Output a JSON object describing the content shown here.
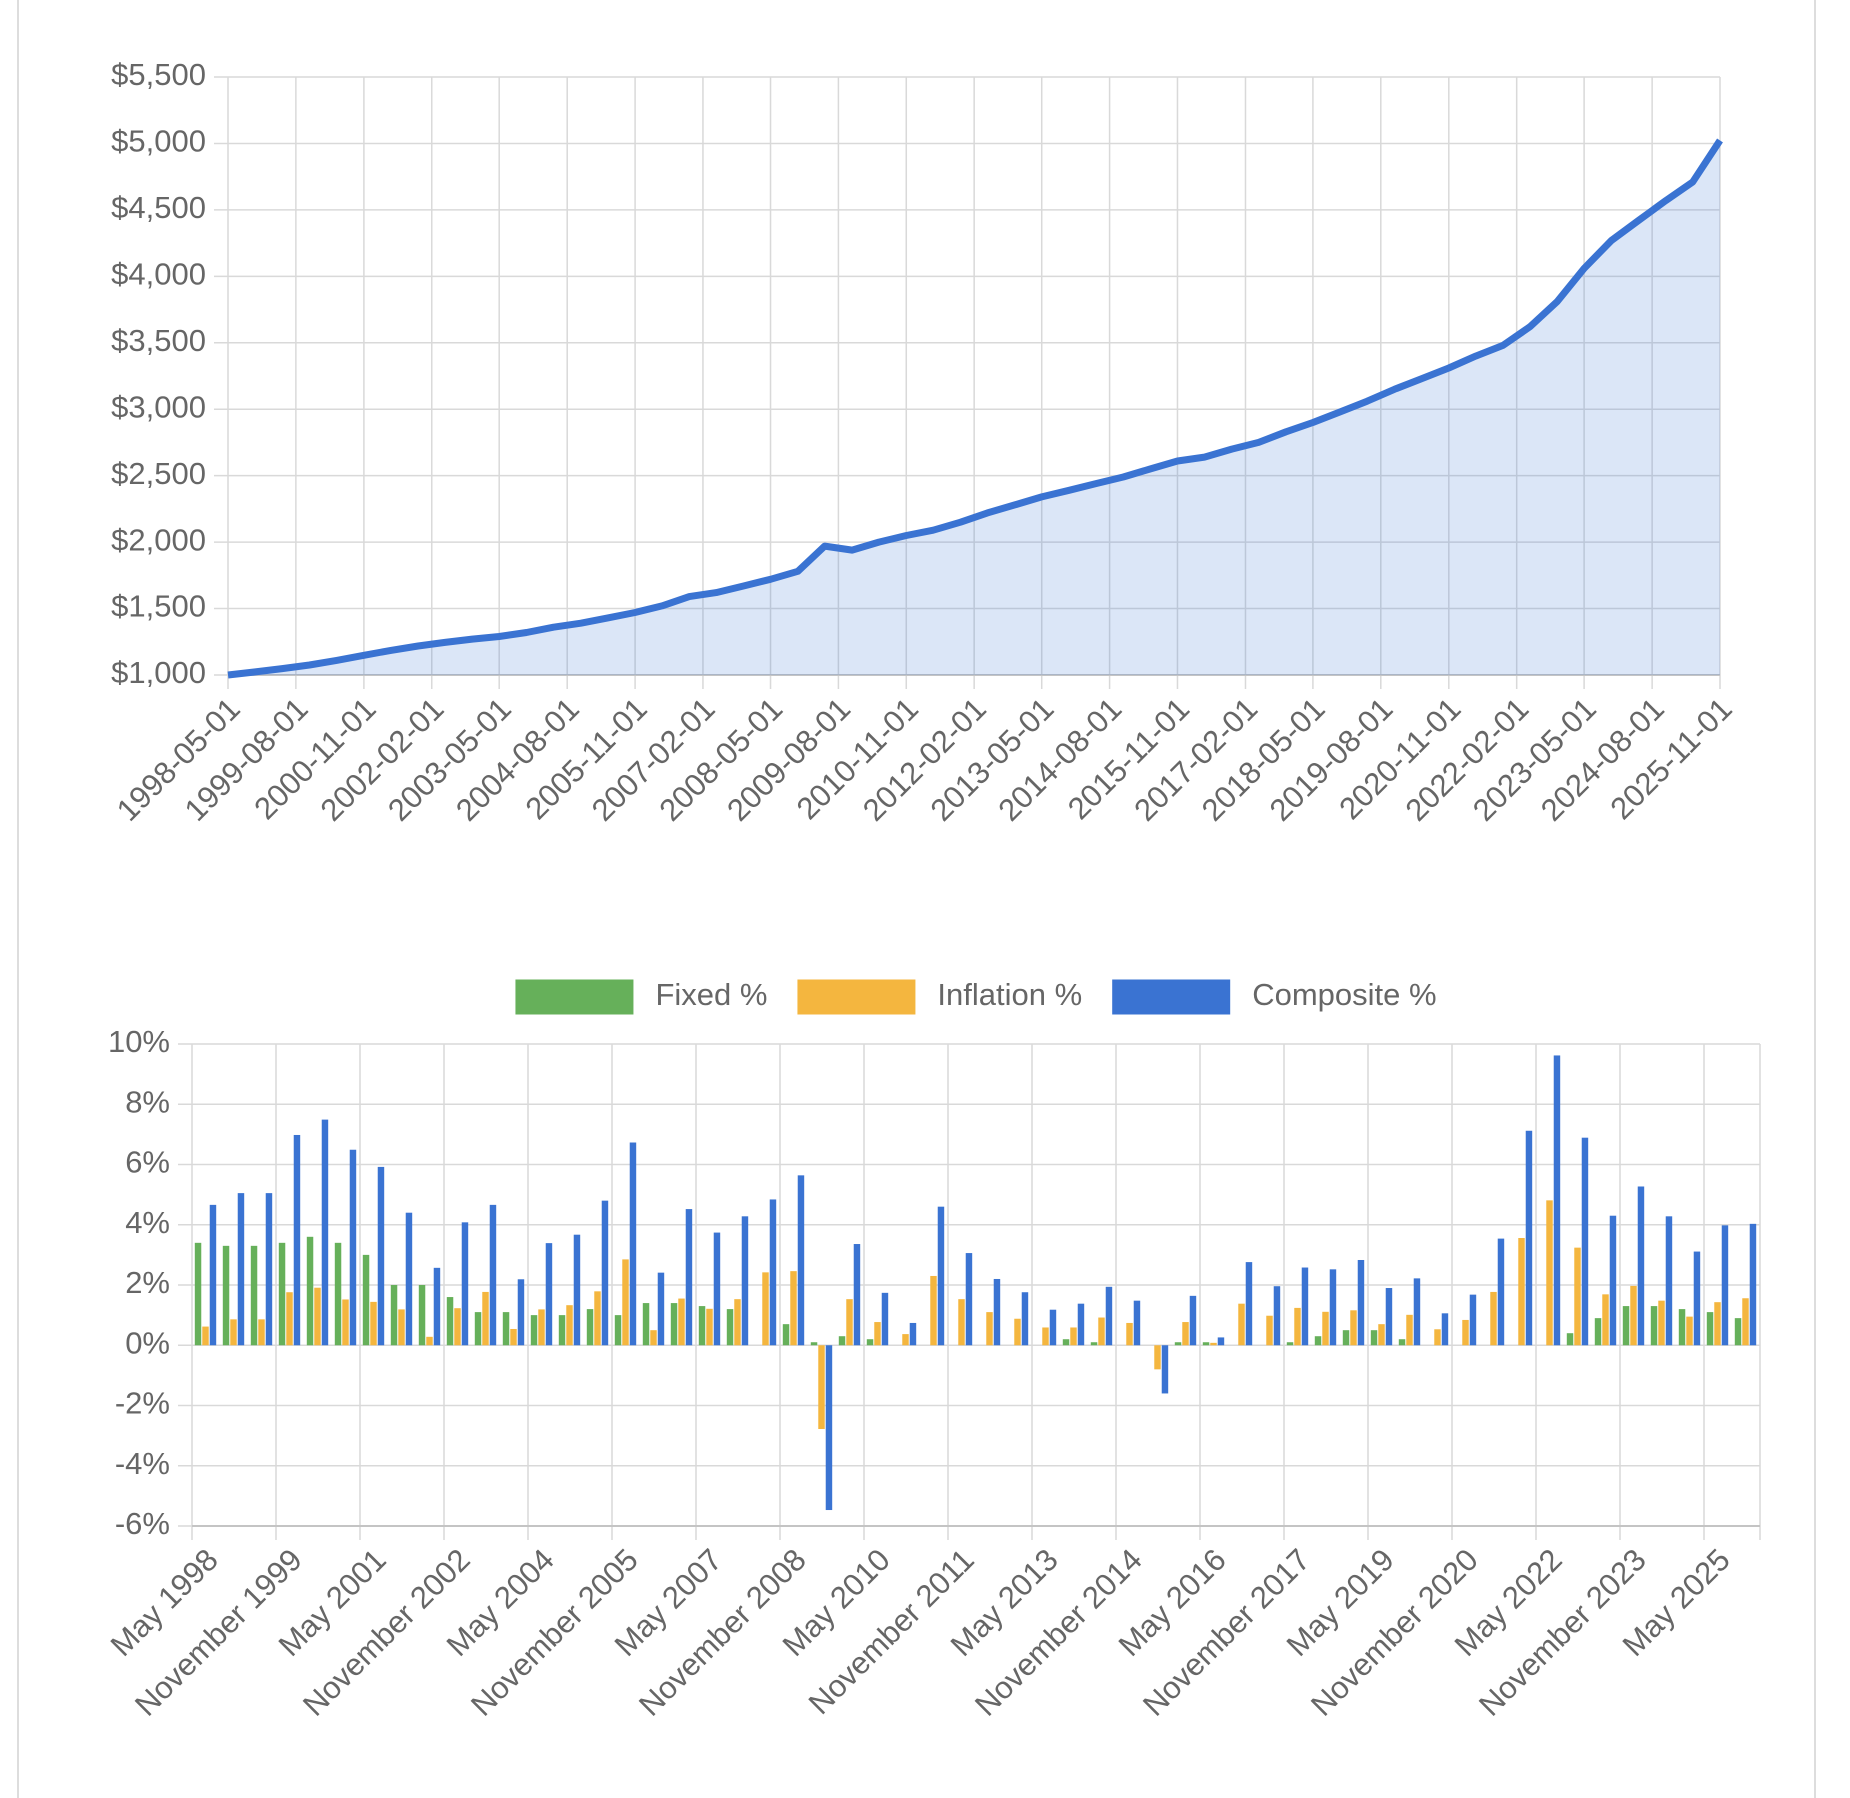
{
  "chart_data": [
    {
      "type": "line",
      "x": [
        "1998-05-01",
        "1998-11-01",
        "1999-05-01",
        "1999-11-01",
        "2000-05-01",
        "2000-11-01",
        "2001-05-01",
        "2001-11-01",
        "2002-05-01",
        "2002-11-01",
        "2003-05-01",
        "2003-11-01",
        "2004-05-01",
        "2004-11-01",
        "2005-05-01",
        "2005-11-01",
        "2006-05-01",
        "2006-11-01",
        "2007-05-01",
        "2007-11-01",
        "2008-05-01",
        "2008-11-01",
        "2009-05-01",
        "2009-11-01",
        "2010-05-01",
        "2010-11-01",
        "2011-05-01",
        "2011-11-01",
        "2012-05-01",
        "2012-11-01",
        "2013-05-01",
        "2013-11-01",
        "2014-05-01",
        "2014-11-01",
        "2015-05-01",
        "2015-11-01",
        "2016-05-01",
        "2016-11-01",
        "2017-05-01",
        "2017-11-01",
        "2018-05-01",
        "2018-11-01",
        "2019-05-01",
        "2019-11-01",
        "2020-05-01",
        "2020-11-01",
        "2021-05-01",
        "2021-11-01",
        "2022-05-01",
        "2022-11-01",
        "2023-05-01",
        "2023-11-01",
        "2024-05-01",
        "2024-11-01",
        "2025-05-01",
        "2025-11-01"
      ],
      "values": [
        1000,
        1023,
        1048,
        1075,
        1110,
        1148,
        1185,
        1218,
        1245,
        1270,
        1290,
        1320,
        1360,
        1390,
        1430,
        1470,
        1520,
        1590,
        1620,
        1670,
        1720,
        1780,
        1970,
        1940,
        2000,
        2050,
        2090,
        2150,
        2220,
        2280,
        2340,
        2390,
        2440,
        2490,
        2550,
        2610,
        2640,
        2700,
        2750,
        2830,
        2900,
        2980,
        3060,
        3150,
        3230,
        3310,
        3400,
        3480,
        3620,
        3810,
        4060,
        4270,
        4420,
        4570,
        4710,
        5023
      ],
      "color": "#3a73d2",
      "fill": true,
      "grid": true,
      "xlim": [
        "1998-05-01",
        "2025-11-01"
      ],
      "xticks": [
        "1998-05-01",
        "1999-08-01",
        "2000-11-01",
        "2002-02-01",
        "2003-05-01",
        "2004-08-01",
        "2005-11-01",
        "2007-02-01",
        "2008-05-01",
        "2009-08-01",
        "2010-11-01",
        "2012-02-01",
        "2013-05-01",
        "2014-08-01",
        "2015-11-01",
        "2017-02-01",
        "2018-05-01",
        "2019-08-01",
        "2020-11-01",
        "2022-02-01",
        "2023-05-01",
        "2024-08-01",
        "2025-11-01"
      ],
      "ylim": [
        1000,
        5500
      ],
      "yticks": [
        {
          "value": 1000,
          "label": "$1,000"
        },
        {
          "value": 1500,
          "label": "$1,500"
        },
        {
          "value": 2000,
          "label": "$2,000"
        },
        {
          "value": 2500,
          "label": "$2,500"
        },
        {
          "value": 3000,
          "label": "$3,000"
        },
        {
          "value": 3500,
          "label": "$3,500"
        },
        {
          "value": 4000,
          "label": "$4,000"
        },
        {
          "value": 4500,
          "label": "$4,500"
        },
        {
          "value": 5000,
          "label": "$5,000"
        },
        {
          "value": 5500,
          "label": "$5,500"
        }
      ]
    },
    {
      "type": "bar",
      "categories": [
        "May 1998",
        null,
        null,
        "November 1999",
        null,
        null,
        "May 2001",
        null,
        null,
        "November 2002",
        null,
        null,
        "May 2004",
        null,
        null,
        "November 2005",
        null,
        null,
        "May 2007",
        null,
        null,
        "November 2008",
        null,
        null,
        "May 2010",
        null,
        null,
        "November 2011",
        null,
        null,
        "May 2013",
        null,
        null,
        "November 2014",
        null,
        null,
        "May 2016",
        null,
        null,
        "November 2017",
        null,
        null,
        "May 2019",
        null,
        null,
        "November 2020",
        null,
        null,
        "May 2022",
        null,
        null,
        "November 2023",
        null,
        null,
        "May 2025",
        null
      ],
      "series": [
        {
          "name": "Fixed %",
          "color": "#66b05a",
          "values": [
            3.4,
            3.3,
            3.3,
            3.4,
            3.6,
            3.4,
            3.0,
            2.0,
            2.0,
            1.6,
            1.1,
            1.1,
            1.0,
            1.0,
            1.2,
            1.0,
            1.4,
            1.4,
            1.3,
            1.2,
            0.0,
            0.7,
            0.1,
            0.3,
            0.2,
            0.0,
            0.0,
            0.0,
            0.0,
            0.0,
            0.0,
            0.2,
            0.1,
            0.0,
            0.0,
            0.1,
            0.1,
            0.0,
            0.0,
            0.1,
            0.3,
            0.5,
            0.5,
            0.2,
            0.0,
            0.0,
            0.0,
            0.0,
            0.0,
            0.4,
            0.9,
            1.3,
            1.3,
            1.2,
            1.1,
            0.9
          ]
        },
        {
          "name": "Inflation %",
          "color": "#f4b63f",
          "values": [
            0.62,
            0.86,
            0.86,
            1.76,
            1.91,
            1.52,
            1.44,
            1.19,
            0.28,
            1.23,
            1.77,
            0.54,
            1.19,
            1.33,
            1.79,
            2.85,
            0.5,
            1.55,
            1.21,
            1.53,
            2.42,
            2.46,
            -2.78,
            1.53,
            0.77,
            0.37,
            2.3,
            1.53,
            1.1,
            0.88,
            0.59,
            0.59,
            0.92,
            0.74,
            -0.8,
            0.77,
            0.08,
            1.38,
            0.98,
            1.24,
            1.11,
            1.16,
            0.7,
            1.01,
            0.53,
            0.84,
            1.77,
            3.56,
            4.81,
            3.24,
            1.69,
            1.97,
            1.48,
            0.95,
            1.43,
            1.56
          ]
        },
        {
          "name": "Composite %",
          "color": "#3a73d2",
          "values": [
            4.66,
            5.05,
            5.05,
            6.98,
            7.49,
            6.49,
            5.92,
            4.4,
            2.57,
            4.08,
            4.66,
            2.19,
            3.39,
            3.67,
            4.8,
            6.73,
            2.41,
            4.52,
            3.74,
            4.28,
            4.84,
            5.64,
            -5.47,
            3.36,
            1.74,
            0.74,
            4.6,
            3.06,
            2.2,
            1.76,
            1.18,
            1.38,
            1.94,
            1.48,
            -1.6,
            1.64,
            0.26,
            2.76,
            1.96,
            2.58,
            2.52,
            2.83,
            1.9,
            2.22,
            1.06,
            1.68,
            3.54,
            7.12,
            9.62,
            6.89,
            4.3,
            5.27,
            4.28,
            3.11,
            3.98,
            4.03
          ]
        }
      ],
      "legend": "top",
      "grid": true,
      "ylim": [
        -6,
        10
      ],
      "yticks": [
        {
          "value": -6,
          "label": "-6%"
        },
        {
          "value": -4,
          "label": "-4%"
        },
        {
          "value": -2,
          "label": "-2%"
        },
        {
          "value": 0,
          "label": "0%"
        },
        {
          "value": 2,
          "label": "2%"
        },
        {
          "value": 4,
          "label": "4%"
        },
        {
          "value": 6,
          "label": "6%"
        },
        {
          "value": 8,
          "label": "8%"
        },
        {
          "value": 10,
          "label": "10%"
        }
      ]
    }
  ]
}
